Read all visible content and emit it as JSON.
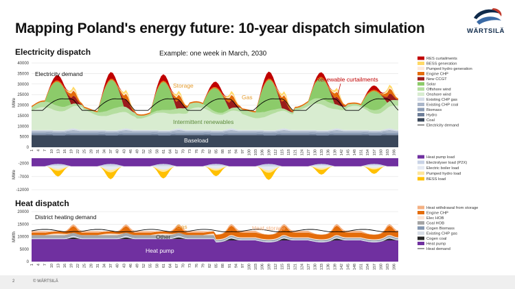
{
  "header": {
    "title": "Mapping Poland's energy future: 10-year dispatch simulation",
    "brand": "WÄRTSILÄ"
  },
  "footer": {
    "page_number": "2",
    "copyright": "© WÄRTSILÄ"
  },
  "colors": {
    "res_curtail": "#c00000",
    "bess_gen": "#ffd966",
    "pumped_gen": "#fde9d9",
    "engine_chp": "#e46c0a",
    "new_ccgt": "#9b1b1b",
    "solar": "#8ccb6a",
    "offshore": "#b5dea0",
    "onshore": "#d8ecd0",
    "chp_gas": "#d6dde8",
    "chp_coal": "#aab6c9",
    "biomass": "#8c9cb5",
    "hydro": "#6d7e99",
    "coal": "#3a475a",
    "heat_pump_load": "#7030a0",
    "electrolyser": "#c9d3e6",
    "boiler": "#e4e9f2",
    "pumped_load": "#ffe699",
    "bess_load": "#ffc000",
    "heat_storage": "#f4b183",
    "engine_chp_heat": "#e46c0a",
    "elec_hob": "#fbe5d6",
    "coal_hob": "#a5a5a5",
    "cogen_biomass": "#8497b0",
    "existing_chp_gas_heat": "#d6dce5",
    "cogen_coal": "#262626",
    "heat_pump": "#7030a0",
    "demand_line": "#000000",
    "annotation_orange": "#e49c2f",
    "annotation_red": "#c00000",
    "annotation_green": "#5c8a3a",
    "annotation_white": "#ffffff"
  },
  "chart_data": [
    {
      "id": "electricity",
      "title": "Electricity dispatch",
      "subtitle": "Example: one week in March, 2030",
      "type": "area",
      "ylabel": "MWe",
      "ylim": [
        0,
        40000
      ],
      "yticks": [
        0,
        5000,
        10000,
        15000,
        20000,
        25000,
        30000,
        35000,
        40000
      ],
      "series_order_bottom_to_top": [
        "Coal",
        "Hydro",
        "Biomass",
        "Existing CHP coal",
        "Existing CHP gas",
        "Onshore wind",
        "Offshore wind",
        "Solar",
        "New CCGT",
        "Engine CHP",
        "Pumped hydro generation",
        "BESS generation",
        "RES curtailments"
      ],
      "series_values": {
        "Coal": 5800,
        "Hydro": 400,
        "Biomass": 800,
        "Existing CHP coal": 700,
        "Existing CHP gas": 500,
        "Onshore wind": "8000–13000 varying",
        "Offshore wind": "1000–3000 varying",
        "Solar": "0 at night, up to ~13000 at midday",
        "New CCGT": "0–5000 evenings",
        "Engine CHP": "500–2500",
        "Pumped hydro generation": "0–1000",
        "BESS generation": "0–1500",
        "RES curtailments": "0–3000 midday"
      },
      "demand_line": "Electricity demand: ~17000 at night, ~27000 evening peaks",
      "annotations": [
        "Electricity demand",
        "Storage",
        "Gas",
        "Renewable curtailments",
        "Intermittent renewables",
        "Baseload"
      ],
      "legend": [
        "RES curtailments",
        "BESS generation",
        "Pumped hydro generation",
        "Engine CHP",
        "New CCGT",
        "Solar",
        "Offshore wind",
        "Onshore wind",
        "Existing CHP gas",
        "Existing CHP coal",
        "Biomass",
        "Hydro",
        "Coal",
        "Electricity demand"
      ]
    },
    {
      "id": "loads",
      "title": "",
      "type": "area",
      "ylabel": "MWe",
      "ylim": [
        -12000,
        0
      ],
      "yticks": [
        -2000,
        -7000,
        -12000
      ],
      "series_values": {
        "Heat pump load": "-2000 to -3500",
        "Electrolyser load (P2X)": "0 to -1000",
        "Electric boiler load": "0 to -1500 midday",
        "Pumped hydro load": "0 to -1000",
        "BESS load": "0 to -2000 midday"
      },
      "legend": [
        "Heat pump load",
        "Electrolyser load (P2X)",
        "Electric boiler load",
        "Pumped hydro load",
        "BESS load"
      ]
    },
    {
      "id": "heat",
      "title": "Heat dispatch",
      "type": "area",
      "ylabel": "MWth",
      "ylim": [
        0,
        20000
      ],
      "yticks": [
        0,
        5000,
        10000,
        15000,
        20000
      ],
      "series_values": {
        "Heat pump": "~9000 first half, ~7500–9000 second half",
        "Cogen coal": "0–1000",
        "Existing CHP gas": "300–700",
        "Cogen Biomass": "200–400",
        "Coal HOB": "0–1000",
        "Elec HOB": "0–1000",
        "Engine CHP": "500–3500",
        "Heat withdrawal from storage": "0–1000"
      },
      "demand_line": "Heat demand: ~12000–13000",
      "annotations": [
        "District heating demand",
        "Gas",
        "Heat storage",
        "Other",
        "Heat pump"
      ],
      "legend": [
        "Heat withdrawal from storage",
        "Engine CHP",
        "Elec HOB",
        "Coal HOB",
        "Cogen Biomass",
        "Existing CHP gas",
        "Cogen coal",
        "Heat pump",
        "Heat demand"
      ]
    }
  ],
  "x_axis": {
    "tick_labels": [
      "1",
      "4",
      "7",
      "10",
      "13",
      "16",
      "19",
      "22",
      "25",
      "28",
      "31",
      "34",
      "37",
      "40",
      "43",
      "46",
      "49",
      "52",
      "55",
      "58",
      "61",
      "64",
      "67",
      "70",
      "73",
      "76",
      "79",
      "82",
      "85",
      "88",
      "91",
      "94",
      "97",
      "100",
      "103",
      "106",
      "109",
      "112",
      "115",
      "118",
      "121",
      "124",
      "127",
      "130",
      "133",
      "136",
      "139",
      "142",
      "145",
      "148",
      "151",
      "154",
      "157",
      "160",
      "163",
      "166"
    ]
  }
}
